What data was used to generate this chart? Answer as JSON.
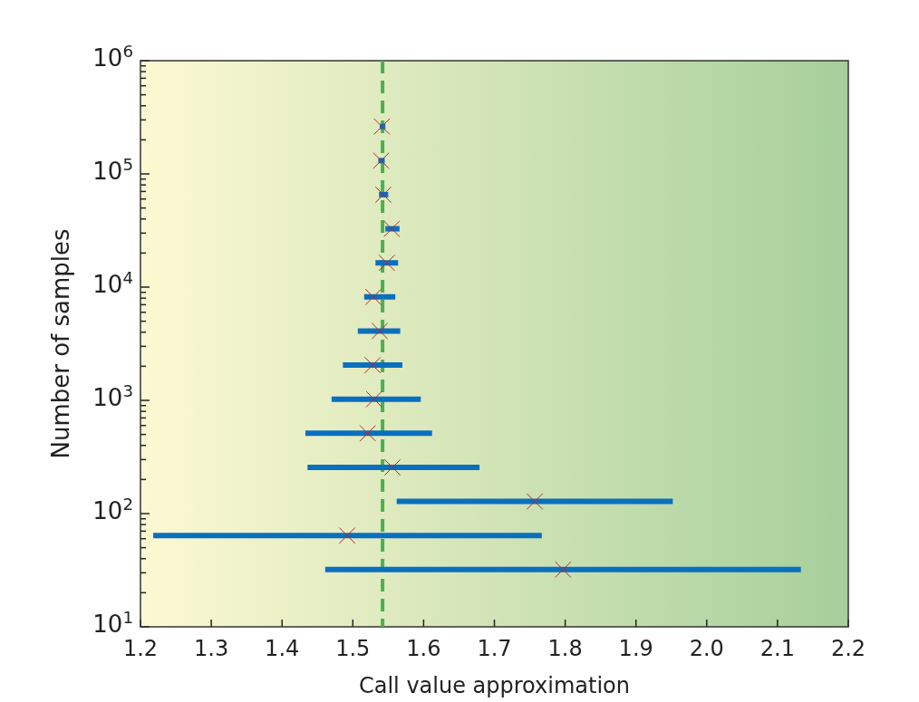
{
  "chart_data": {
    "type": "scatter",
    "xlabel": "Call value approximation",
    "ylabel": "Number of samples",
    "log": "y",
    "grid": false,
    "marker": "cross",
    "xlim": [
      1.2,
      2.2
    ],
    "xticks": [
      1.2,
      1.3,
      1.4,
      1.5,
      1.6,
      1.7,
      1.8,
      1.9,
      {
        "value": 2,
        "label": "2.0"
      },
      2.1,
      2.2
    ],
    "ylim": [
      10,
      1000000
    ],
    "yticks": [
      {
        "value": 10,
        "label": "10$^{1}$"
      },
      {
        "value": 20,
        "label": null
      },
      {
        "value": 30,
        "label": null
      },
      {
        "value": 40,
        "label": null
      },
      {
        "value": 50,
        "label": null
      },
      {
        "value": 60,
        "label": null
      },
      {
        "value": 70,
        "label": null
      },
      {
        "value": 80,
        "label": null
      },
      {
        "value": 90,
        "label": null
      },
      {
        "value": 100,
        "label": "10$^{2}$"
      },
      {
        "value": 200,
        "label": null
      },
      {
        "value": 300,
        "label": null
      },
      {
        "value": 400,
        "label": null
      },
      {
        "value": 500,
        "label": null
      },
      {
        "value": 600,
        "label": null
      },
      {
        "value": 700,
        "label": null
      },
      {
        "value": 800,
        "label": null
      },
      {
        "value": 900,
        "label": null
      },
      {
        "value": 1000,
        "label": "10$^{3}$"
      },
      {
        "value": 2000,
        "label": null
      },
      {
        "value": 3000,
        "label": null
      },
      {
        "value": 4000,
        "label": null
      },
      {
        "value": 5000,
        "label": null
      },
      {
        "value": 6000,
        "label": null
      },
      {
        "value": 7000,
        "label": null
      },
      {
        "value": 8000,
        "label": null
      },
      {
        "value": 9000,
        "label": null
      },
      {
        "value": 10000,
        "label": "10$^{4}$"
      },
      {
        "value": 20000,
        "label": null
      },
      {
        "value": 30000,
        "label": null
      },
      {
        "value": 40000,
        "label": null
      },
      {
        "value": 50000,
        "label": null
      },
      {
        "value": 60000,
        "label": null
      },
      {
        "value": 70000,
        "label": null
      },
      {
        "value": 80000,
        "label": null
      },
      {
        "value": 90000,
        "label": null
      },
      {
        "value": 100000,
        "label": "10$^{5}$"
      },
      {
        "value": 200000,
        "label": null
      },
      {
        "value": 300000,
        "label": null
      },
      {
        "value": 400000,
        "label": null
      },
      {
        "value": 500000,
        "label": null
      },
      {
        "value": 600000,
        "label": null
      },
      {
        "value": 700000,
        "label": null
      },
      {
        "value": 800000,
        "label": null
      },
      {
        "value": 900000,
        "label": null
      },
      {
        "value": 1000000,
        "label": "10$^{6}$"
      }
    ],
    "ref_lines": [
      {
        "axis": "x",
        "value": 1.542,
        "color": "#4cb050",
        "line_style": "dashed"
      }
    ],
    "series": [
      {
        "color": "#b5262b",
        "x": [
          1.541,
          1.54,
          1.543,
          1.555,
          1.548,
          1.529,
          1.538,
          1.528,
          1.53,
          1.521,
          1.556,
          1.757,
          1.492,
          1.797
        ],
        "values": [
          262144,
          131072,
          65536,
          32768,
          16384,
          8192,
          4096,
          2048,
          1024,
          512,
          256,
          128,
          64,
          32
        ],
        "xerrors": [
          [
            1.538,
            1.546
          ],
          [
            1.536,
            1.545
          ],
          [
            1.537,
            1.55
          ],
          [
            1.546,
            1.566
          ],
          [
            1.532,
            1.564
          ],
          [
            1.516,
            1.56
          ],
          [
            1.507,
            1.567
          ],
          [
            1.486,
            1.57
          ],
          [
            1.47,
            1.596
          ],
          [
            1.433,
            1.612
          ],
          [
            1.436,
            1.679
          ],
          [
            1.562,
            1.952
          ],
          [
            1.218,
            1.767
          ],
          [
            1.461,
            2.133
          ]
        ]
      }
    ]
  }
}
